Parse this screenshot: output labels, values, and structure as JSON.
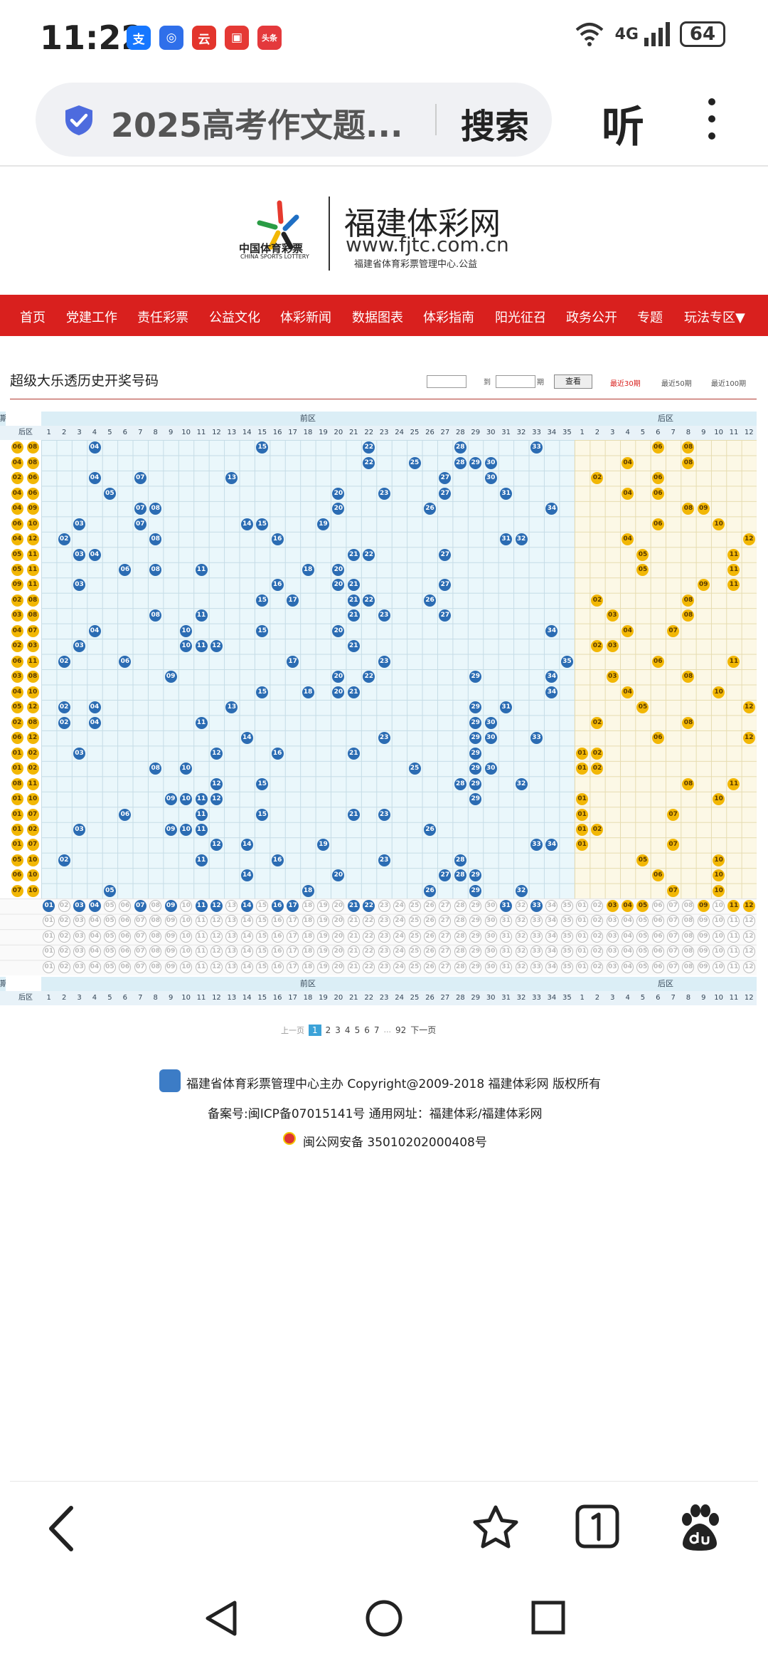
{
  "status": {
    "time": "11:22",
    "network": "4G",
    "battery": "64",
    "app_icons": [
      {
        "name": "alipay-icon",
        "glyph": "支",
        "color": "#1677ff"
      },
      {
        "name": "assistant-icon",
        "glyph": "◎",
        "color": "#2f6fea"
      },
      {
        "name": "cloud-music-icon",
        "glyph": "云",
        "color": "#e3352c"
      },
      {
        "name": "reader-icon",
        "glyph": "▣",
        "color": "#e53935"
      },
      {
        "name": "toutiao-icon",
        "glyph": "头条",
        "color": "#e4393c"
      }
    ]
  },
  "browser": {
    "query": "2025高考作文题...",
    "search_label": "搜索",
    "listen_label": "听"
  },
  "site": {
    "logo_cn": "中国体育彩票",
    "logo_en": "CHINA SPORTS LOTTERY",
    "title": "福建体彩网",
    "url": "www.fjtc.com.cn",
    "subtitle": "福建省体育彩票管理中心.公益"
  },
  "nav": [
    "首页",
    "党建工作",
    "责任彩票",
    "公益文化",
    "体彩新闻",
    "数据图表",
    "体彩指南",
    "阳光征召",
    "政务公开",
    "专题",
    "玩法专区▼"
  ],
  "page": {
    "title": "超级大乐透历史开奖号码",
    "range_sep": "到",
    "range_unit": "期",
    "query_label": "查看",
    "periods": [
      "最近30期",
      "最近50期",
      "最近100期"
    ],
    "zone_front": "前区",
    "zone_back": "后区",
    "zone_left": "期",
    "back_col_label": "后区"
  },
  "left_pairs": [
    [
      "06",
      "08"
    ],
    [
      "04",
      "08"
    ],
    [
      "02",
      "06"
    ],
    [
      "04",
      "06"
    ],
    [
      "04",
      "09"
    ],
    [
      "06",
      "10"
    ],
    [
      "04",
      "12"
    ],
    [
      "05",
      "11"
    ],
    [
      "05",
      "11"
    ],
    [
      "09",
      "11"
    ],
    [
      "02",
      "08"
    ],
    [
      "03",
      "08"
    ],
    [
      "04",
      "07"
    ],
    [
      "02",
      "03"
    ],
    [
      "06",
      "11"
    ],
    [
      "03",
      "08"
    ],
    [
      "04",
      "10"
    ],
    [
      "05",
      "12"
    ],
    [
      "02",
      "08"
    ],
    [
      "06",
      "12"
    ],
    [
      "01",
      "02"
    ],
    [
      "01",
      "02"
    ],
    [
      "08",
      "11"
    ],
    [
      "01",
      "10"
    ],
    [
      "01",
      "07"
    ],
    [
      "01",
      "02"
    ],
    [
      "01",
      "07"
    ],
    [
      "05",
      "10"
    ],
    [
      "06",
      "10"
    ],
    [
      "07",
      "10"
    ]
  ],
  "draws": [
    {
      "f": [
        4,
        15,
        22,
        28,
        33
      ],
      "b": [
        6,
        8
      ]
    },
    {
      "f": [
        22,
        25,
        28,
        29,
        30
      ],
      "b": [
        4,
        8
      ]
    },
    {
      "f": [
        4,
        7,
        13,
        27,
        30
      ],
      "b": [
        2,
        6
      ]
    },
    {
      "f": [
        5,
        20,
        23,
        27,
        31
      ],
      "b": [
        4,
        6
      ]
    },
    {
      "f": [
        7,
        8,
        20,
        26,
        34
      ],
      "b": [
        8,
        9
      ]
    },
    {
      "f": [
        3,
        7,
        14,
        15,
        19
      ],
      "b": [
        6,
        10
      ]
    },
    {
      "f": [
        2,
        8,
        16,
        31,
        32
      ],
      "b": [
        4,
        12
      ]
    },
    {
      "f": [
        3,
        4,
        21,
        22,
        27
      ],
      "b": [
        5,
        11
      ]
    },
    {
      "f": [
        6,
        8,
        11,
        18,
        20
      ],
      "b": [
        5,
        11
      ]
    },
    {
      "f": [
        3,
        16,
        20,
        21,
        27
      ],
      "b": [
        9,
        11
      ]
    },
    {
      "f": [
        15,
        17,
        21,
        22,
        26
      ],
      "b": [
        2,
        8
      ]
    },
    {
      "f": [
        8,
        11,
        21,
        23,
        27
      ],
      "b": [
        3,
        8
      ]
    },
    {
      "f": [
        4,
        10,
        15,
        20,
        34
      ],
      "b": [
        4,
        7
      ]
    },
    {
      "f": [
        3,
        10,
        11,
        12,
        21
      ],
      "b": [
        2,
        3
      ]
    },
    {
      "f": [
        2,
        6,
        17,
        23,
        35
      ],
      "b": [
        6,
        11
      ]
    },
    {
      "f": [
        9,
        20,
        22,
        29,
        34
      ],
      "b": [
        3,
        8
      ]
    },
    {
      "f": [
        15,
        18,
        20,
        21,
        34
      ],
      "b": [
        4,
        10
      ]
    },
    {
      "f": [
        2,
        4,
        13,
        29,
        31
      ],
      "b": [
        5,
        12
      ]
    },
    {
      "f": [
        2,
        4,
        11,
        29,
        30
      ],
      "b": [
        2,
        8
      ]
    },
    {
      "f": [
        14,
        23,
        29,
        30,
        33
      ],
      "b": [
        6,
        12
      ]
    },
    {
      "f": [
        3,
        12,
        16,
        21,
        29
      ],
      "b": [
        1,
        2
      ]
    },
    {
      "f": [
        8,
        10,
        25,
        29,
        30
      ],
      "b": [
        1,
        2
      ]
    },
    {
      "f": [
        12,
        15,
        28,
        29,
        32
      ],
      "b": [
        8,
        11
      ]
    },
    {
      "f": [
        9,
        10,
        11,
        12,
        29
      ],
      "b": [
        1,
        10
      ]
    },
    {
      "f": [
        6,
        11,
        15,
        21,
        23
      ],
      "b": [
        1,
        7
      ]
    },
    {
      "f": [
        3,
        9,
        10,
        11,
        26
      ],
      "b": [
        1,
        2
      ]
    },
    {
      "f": [
        12,
        14,
        19,
        33,
        34
      ],
      "b": [
        1,
        7
      ]
    },
    {
      "f": [
        2,
        11,
        16,
        23,
        28
      ],
      "b": [
        5,
        10
      ]
    },
    {
      "f": [
        14,
        20,
        27,
        28,
        29
      ],
      "b": [
        6,
        10
      ]
    },
    {
      "f": [
        5,
        18,
        26,
        29,
        32
      ],
      "b": [
        7,
        10
      ]
    }
  ],
  "stats_front": [
    1,
    3,
    4,
    7,
    9,
    11,
    12,
    14,
    16,
    17,
    21,
    22,
    31,
    33
  ],
  "stats_back": [
    3,
    4,
    5,
    9,
    11,
    12
  ],
  "pager": {
    "prev": "上一页",
    "pages": [
      "1",
      "2",
      "3",
      "4",
      "5",
      "6",
      "7"
    ],
    "ellipsis": "...",
    "last": "92",
    "next": "下一页"
  },
  "footer": {
    "line1": "福建省体育彩票管理中心主办 Copyright@2009-2018 福建体彩网 版权所有",
    "line2": "备案号:闽ICP备07015141号    通用网址：福建体彩/福建体彩网",
    "line3": "闽公网安备 35010202000408号"
  },
  "colors": {
    "nav_red": "#d9201e",
    "front_ball": "#2b6cb3",
    "back_ball": "#f2b705",
    "pager_active": "#3ba2d8"
  }
}
